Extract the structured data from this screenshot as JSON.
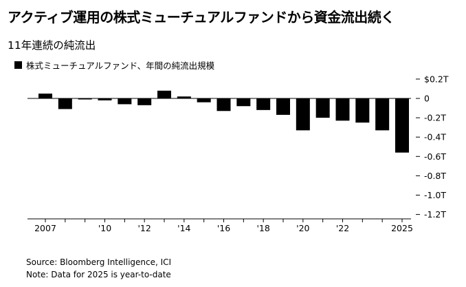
{
  "title": "アクティブ運用の株式ミューチュアルファンドから資金流出続く",
  "subtitle": "11年連続の純流出",
  "legend_label": "株式ミューチュアルファンド、年間の純流出規模",
  "source": "Source: Bloomberg Intelligence, ICI",
  "note": "Note: Data for 2025 is year-to-date",
  "colors": {
    "bar": "#000000",
    "zero_line": "#000000",
    "grid": "#dddddd"
  },
  "chart_data": {
    "type": "bar",
    "categories": [
      "2007",
      "2008",
      "2009",
      "2010",
      "2011",
      "2012",
      "2013",
      "2014",
      "2015",
      "2016",
      "2017",
      "2018",
      "2019",
      "2020",
      "2021",
      "2022",
      "2023",
      "2024",
      "2025"
    ],
    "values": [
      0.05,
      -0.11,
      -0.01,
      -0.02,
      -0.06,
      -0.07,
      0.08,
      0.02,
      -0.04,
      -0.13,
      -0.08,
      -0.12,
      -0.17,
      -0.33,
      -0.2,
      -0.23,
      -0.25,
      -0.33,
      -0.56
    ],
    "x_tick_labels": [
      "2007",
      "",
      "",
      "'10",
      "",
      "'12",
      "",
      "'14",
      "",
      "'16",
      "",
      "'18",
      "",
      "'20",
      "",
      "'22",
      "",
      "",
      "2025"
    ],
    "y_ticks": [
      0.2,
      0,
      -0.2,
      -0.4,
      -0.6,
      -0.8,
      -1.0,
      -1.2
    ],
    "y_tick_labels": [
      "$0.2T",
      "0",
      "-0.2T",
      "-0.4T",
      "-0.6T",
      "-0.8T",
      "-1.0T",
      "-1.2T"
    ],
    "ylim": [
      -1.2,
      0.2
    ],
    "unit": "T (USD trillions)",
    "axis_side": "right"
  }
}
